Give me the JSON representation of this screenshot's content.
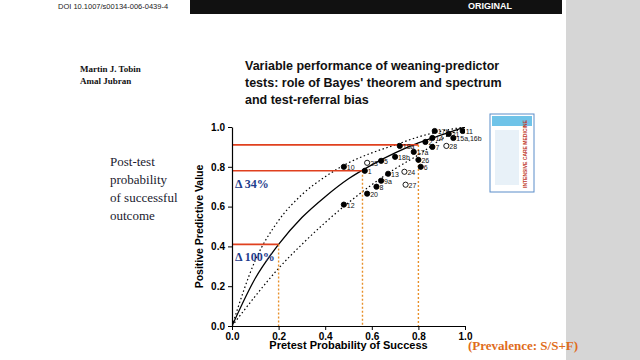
{
  "document": {
    "doi": "DOI 10.1007/s00134-006-0439-4",
    "section": "ORIGINAL",
    "authors": [
      "Martin J. Tobin",
      "Amal Jubran"
    ],
    "title": [
      "Variable performance of weaning-predictor",
      "tests: role of Bayes' theorem and spectrum",
      "and test-referral bias"
    ],
    "cover_text": "INTENSIVE CARE MEDICINE"
  },
  "chart_data": {
    "type": "scatter",
    "x_label": "Pretest Probability of Success",
    "x_label_note": "(Prevalence: S/S+F)",
    "y_label": "Positive Predictive Value",
    "side_note": [
      "Post-test",
      "probability",
      "of successful",
      "outcome"
    ],
    "xlim": [
      0,
      1
    ],
    "ylim": [
      0,
      1
    ],
    "xticks": [
      {
        "value": 0,
        "label": "0.0"
      },
      0.2,
      0.4,
      0.6,
      0.8,
      {
        "value": 1,
        "label": "1.0"
      }
    ],
    "yticks": [
      {
        "value": 0,
        "label": "0.0"
      },
      0.2,
      0.4,
      0.6,
      0.8,
      {
        "value": 1,
        "label": "1.0"
      }
    ],
    "series": [
      {
        "type": "scatter",
        "marker": "filled",
        "color": "#000000",
        "point_labels": [
          "10",
          "1",
          "12",
          "20",
          "8",
          "9a",
          "13",
          "5",
          "18b",
          "18a",
          "17a",
          "26",
          "6",
          "2",
          "7",
          "14",
          "17b",
          "21",
          "11",
          "15a,16b"
        ],
        "x": [
          0.48,
          0.57,
          0.48,
          0.58,
          0.62,
          0.64,
          0.67,
          0.64,
          0.7,
          0.72,
          0.78,
          0.8,
          0.81,
          0.83,
          0.86,
          0.86,
          0.87,
          0.93,
          0.99,
          0.95
        ],
        "values": [
          0.8,
          0.78,
          0.61,
          0.665,
          0.7,
          0.73,
          0.765,
          0.83,
          0.85,
          0.905,
          0.875,
          0.835,
          0.8,
          0.925,
          0.9,
          0.945,
          0.98,
          0.965,
          0.98,
          0.945
        ]
      },
      {
        "type": "scatter",
        "marker": "open",
        "color": "#000000",
        "point_labels": [
          "23",
          "24",
          "27",
          "28"
        ],
        "x": [
          0.58,
          0.74,
          0.745,
          0.92
        ],
        "values": [
          0.82,
          0.775,
          0.71,
          0.905
        ]
      },
      {
        "type": "line",
        "line_style": "solid",
        "color": "#000000",
        "x": [
          0,
          0.1,
          0.2,
          0.3,
          0.4,
          0.5,
          0.6,
          0.7,
          0.8,
          0.9,
          1
        ],
        "values": [
          0,
          0.24,
          0.41,
          0.545,
          0.65,
          0.74,
          0.81,
          0.87,
          0.92,
          0.96,
          1
        ]
      },
      {
        "type": "line",
        "line_style": "dotted",
        "color": "#000000",
        "x": [
          0,
          0.1,
          0.2,
          0.3,
          0.4,
          0.5,
          0.6,
          0.7,
          0.8,
          0.9,
          1
        ],
        "values": [
          0,
          0.33,
          0.53,
          0.66,
          0.75,
          0.82,
          0.87,
          0.91,
          0.95,
          0.98,
          1
        ]
      },
      {
        "type": "line",
        "line_style": "dotted",
        "color": "#000000",
        "x": [
          0,
          0.1,
          0.2,
          0.3,
          0.4,
          0.5,
          0.6,
          0.7,
          0.8,
          0.9,
          1
        ],
        "values": [
          0,
          0.15,
          0.29,
          0.41,
          0.52,
          0.62,
          0.71,
          0.79,
          0.86,
          0.94,
          1
        ]
      },
      {
        "type": "guide",
        "color": "#e0401e",
        "x": [
          0.2,
          0.56,
          0.8
        ],
        "values": [
          0.41,
          0.78,
          0.91
        ]
      }
    ],
    "annotations": [
      "Δ 100%",
      "Δ 34%"
    ]
  }
}
